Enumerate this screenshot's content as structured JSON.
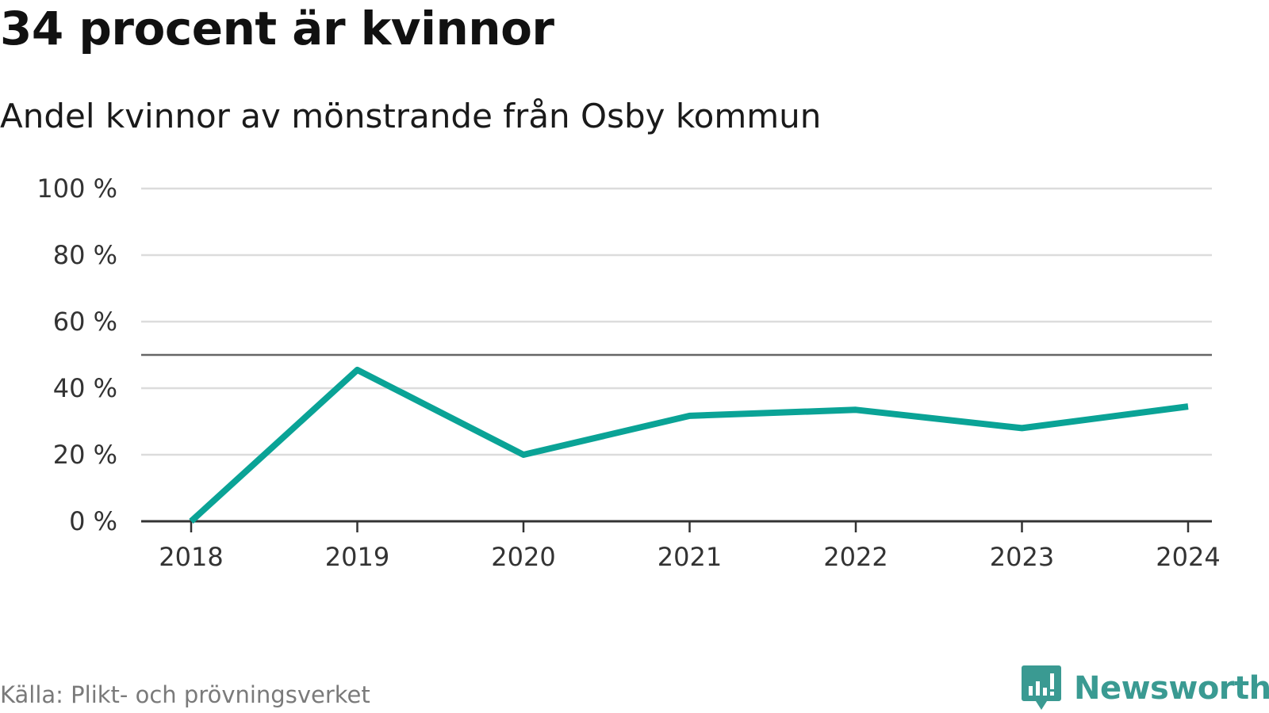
{
  "title": "34 procent är kvinnor",
  "subtitle": "Andel kvinnor av mönstrande från Osby kommun",
  "source": "Källa: Plikt- och prövningsverket",
  "logo": {
    "text": "Newsworthy",
    "icon": "bar-chart-speech-bubble-icon"
  },
  "colors": {
    "line": "#0aa396",
    "grid": "#dcdcdc",
    "reference": "#666666",
    "axis": "#333333",
    "logo": "#3a9a92"
  },
  "chart_data": {
    "type": "line",
    "title": "34 procent är kvinnor",
    "subtitle": "Andel kvinnor av mönstrande från Osby kommun",
    "xlabel": "",
    "ylabel": "",
    "categories": [
      "2018",
      "2019",
      "2020",
      "2021",
      "2022",
      "2023",
      "2024"
    ],
    "series": [
      {
        "values": [
          0,
          45.5,
          20,
          31.7,
          33.5,
          28,
          34.5
        ]
      }
    ],
    "ylim": [
      0,
      100
    ],
    "yticks": [
      0,
      20,
      40,
      60,
      80,
      100
    ],
    "ytick_labels": [
      "0 %",
      "20 %",
      "40 %",
      "60 %",
      "80 %",
      "100 %"
    ],
    "reference_line": 50,
    "grid": true,
    "legend": "none"
  }
}
